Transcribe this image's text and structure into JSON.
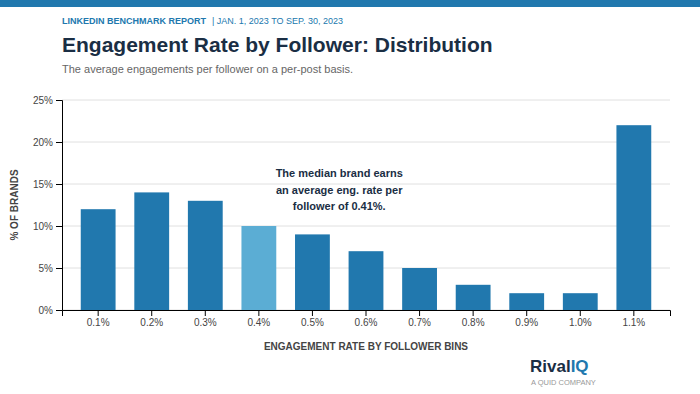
{
  "chart_data": {
    "type": "bar",
    "title": "Engagement Rate by Follower: Distribution",
    "subtitle": "The average engagements per follower on a per-post basis.",
    "xlabel": "ENGAGEMENT RATE BY FOLLOWER BINS",
    "ylabel": "% OF BRANDS",
    "categories": [
      "0.1%",
      "0.2%",
      "0.3%",
      "0.4%",
      "0.5%",
      "0.6%",
      "0.7%",
      "0.8%",
      "0.9%",
      "1.0%",
      "1.1%"
    ],
    "values": [
      12,
      14,
      13,
      10,
      9,
      7,
      5,
      3,
      2,
      2,
      22
    ],
    "colors": [
      "#2178AE",
      "#2178AE",
      "#2178AE",
      "#5BADD4",
      "#2178AE",
      "#2178AE",
      "#2178AE",
      "#2178AE",
      "#2178AE",
      "#2178AE",
      "#2178AE"
    ],
    "ylim": [
      0,
      25
    ],
    "yticks": [
      {
        "value": 0,
        "label": "0%"
      },
      {
        "value": 5,
        "label": "5%"
      },
      {
        "value": 10,
        "label": "10%"
      },
      {
        "value": 15,
        "label": "15%"
      },
      {
        "value": 20,
        "label": "20%"
      },
      {
        "value": 25,
        "label": "25%"
      }
    ],
    "grid": true,
    "annotations": [
      "LINKEDIN BENCHMARK REPORT",
      "| JAN. 1, 2023 TO SEP. 30, 2023",
      "The median brand earns\nan average eng. rate per\nfollower of 0.41%.",
      "Rival",
      "IQ",
      "A QUID COMPANY"
    ]
  }
}
